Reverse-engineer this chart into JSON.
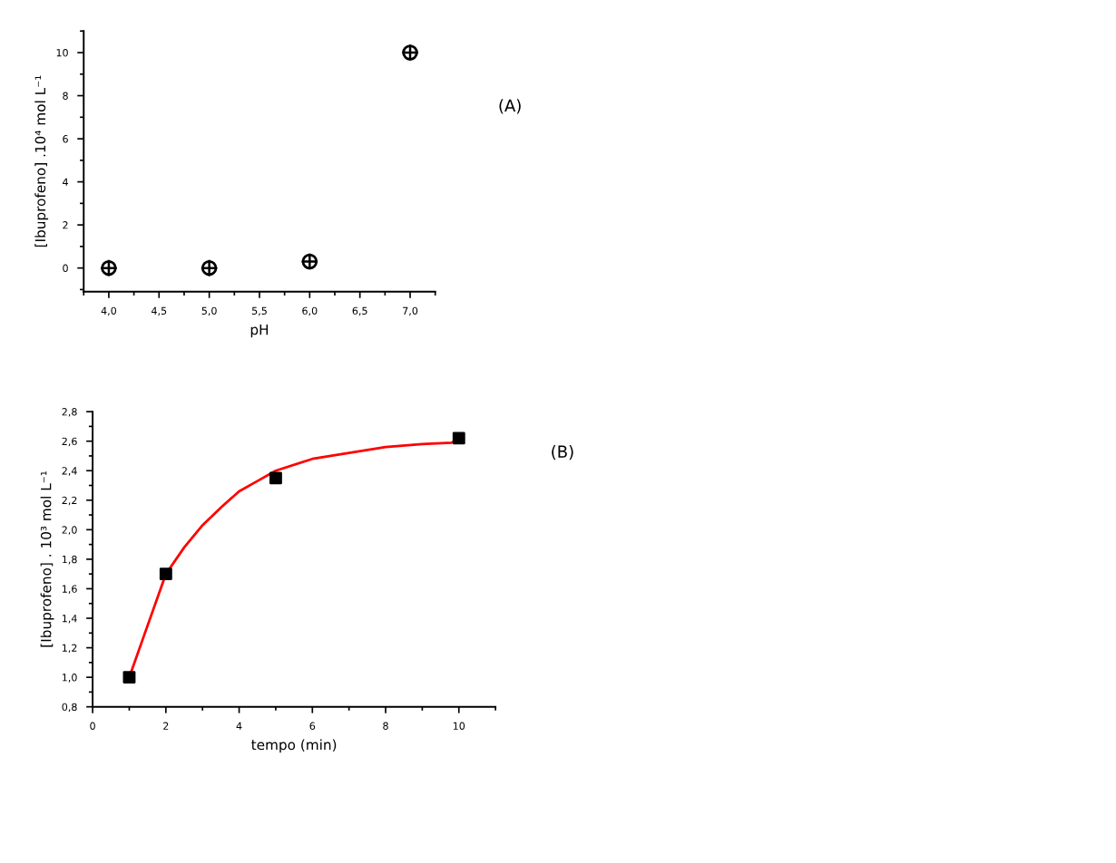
{
  "chart_data": [
    {
      "type": "scatter",
      "xlabel": "pH",
      "ylabel": "[Ibuprofeno] .10⁴ mol L⁻¹",
      "annotations": [
        "(A)"
      ],
      "x": [
        4.0,
        5.0,
        6.0,
        7.0
      ],
      "values": [
        0,
        0,
        0.3,
        10
      ],
      "color": "#000000",
      "marker": "circle",
      "xlim": [
        3.75,
        7.25
      ],
      "ylim": [
        -1.1,
        11
      ],
      "xticks": [
        {
          "value": 4.0,
          "label": "4,0"
        },
        {
          "value": 4.5,
          "label": "4,5"
        },
        {
          "value": 5.0,
          "label": "5,0"
        },
        {
          "value": 5.5,
          "label": "5,5"
        },
        {
          "value": 6.0,
          "label": "6,0"
        },
        {
          "value": 6.5,
          "label": "6,5"
        },
        {
          "value": 7.0,
          "label": "7,0"
        }
      ],
      "yticks": [
        0,
        2,
        4,
        6,
        8,
        10
      ],
      "grid": false,
      "legend": false
    },
    {
      "type": "scatter",
      "xlabel": "tempo (min)",
      "ylabel": "[Ibuprofeno] . 10³ mol L⁻¹",
      "annotations": [
        "(B)"
      ],
      "xlim": [
        0,
        11
      ],
      "ylim": [
        0.8,
        2.8
      ],
      "xticks": [
        0,
        2,
        4,
        6,
        8,
        10
      ],
      "yticks": [
        {
          "value": 0.8,
          "label": "0,8"
        },
        {
          "value": 1.0,
          "label": "1,0"
        },
        {
          "value": 1.2,
          "label": "1,2"
        },
        {
          "value": 1.4,
          "label": "1,4"
        },
        {
          "value": 1.6,
          "label": "1,6"
        },
        {
          "value": 1.8,
          "label": "1,8"
        },
        {
          "value": 2.0,
          "label": "2,0"
        },
        {
          "value": 2.2,
          "label": "2,2"
        },
        {
          "value": 2.4,
          "label": "2,4"
        },
        {
          "value": 2.6,
          "label": "2,6"
        },
        {
          "value": 2.8,
          "label": "2,8"
        }
      ],
      "grid": false,
      "legend": false,
      "series": [
        {
          "type": "scatter",
          "color": "#000000",
          "marker": "square",
          "x": [
            1,
            2,
            5,
            10
          ],
          "values": [
            1.0,
            1.7,
            2.35,
            2.62
          ]
        },
        {
          "type": "line",
          "color": "#ff0000",
          "marker": "none",
          "line_style": "solid",
          "x": [
            1,
            1.5,
            2,
            2.5,
            3,
            3.5,
            4,
            4.5,
            5,
            6,
            7,
            8,
            9,
            9.8,
            10
          ],
          "values": [
            1.0,
            1.35,
            1.7,
            1.88,
            2.03,
            2.15,
            2.26,
            2.33,
            2.4,
            2.48,
            2.52,
            2.56,
            2.58,
            2.59,
            2.61
          ]
        }
      ]
    }
  ]
}
